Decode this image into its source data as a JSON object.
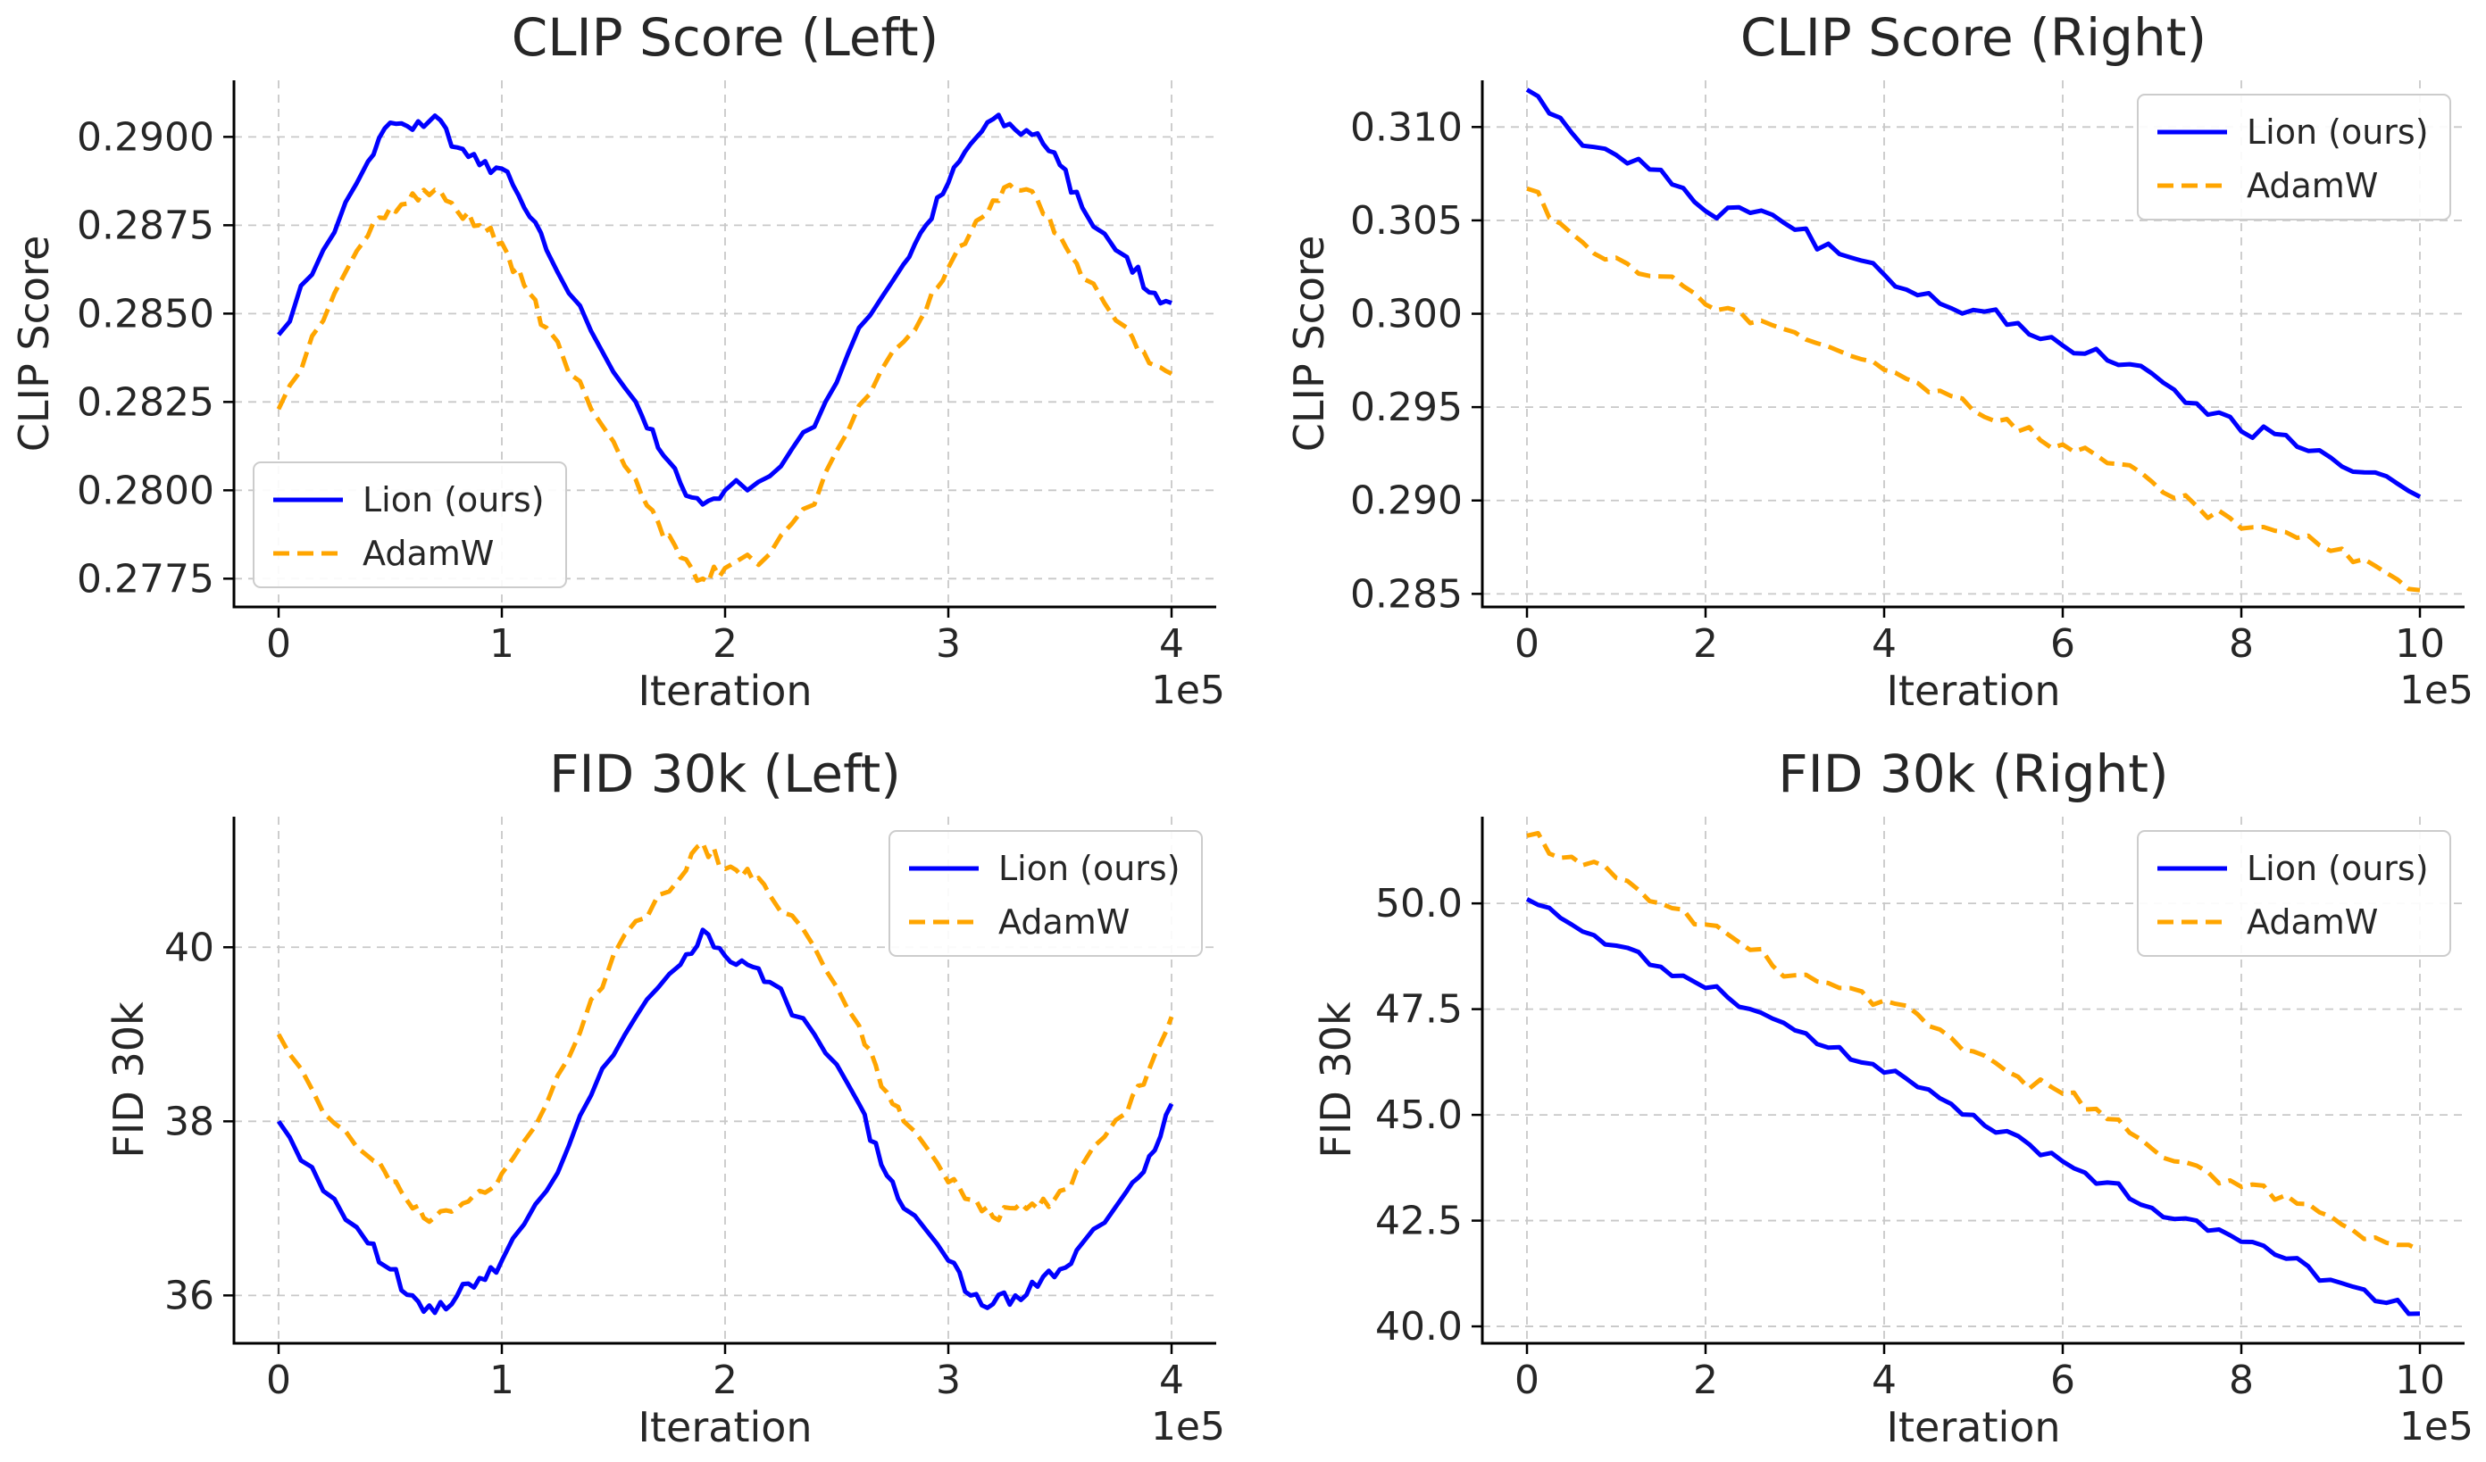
{
  "figure": {
    "layout": "2x2"
  },
  "series_style": {
    "lion": {
      "name": "Lion (ours)",
      "color": "#0000ff",
      "dash": "solid"
    },
    "adamw": {
      "name": "AdamW",
      "color": "#ffa500",
      "dash": "dashed"
    }
  },
  "chart_data": [
    {
      "type": "line",
      "title": "CLIP Score (Left)",
      "xlabel": "Iteration",
      "ylabel": "CLIP Score",
      "x_offset_label": "1e5",
      "xlim": [
        -0.2,
        4.2
      ],
      "ylim": [
        0.2767,
        0.2916
      ],
      "xticks": [
        0,
        1,
        2,
        3,
        4
      ],
      "xtick_labels": [
        "0",
        "1",
        "2",
        "3",
        "4"
      ],
      "yticks": [
        0.2775,
        0.28,
        0.2825,
        0.285,
        0.2875,
        0.29
      ],
      "ytick_labels": [
        "0.2775",
        "0.2800",
        "0.2825",
        "0.2850",
        "0.2875",
        "0.2900"
      ],
      "grid": true,
      "legend": {
        "position": "lower-left",
        "entries": [
          "Lion (ours)",
          "AdamW"
        ]
      },
      "series": [
        {
          "name": "Lion (ours)",
          "key": "lion",
          "x": [
            0,
            0.2,
            0.4,
            0.5,
            0.6,
            0.7,
            0.8,
            0.9,
            1.0,
            1.1,
            1.2,
            1.4,
            1.6,
            1.7,
            1.8,
            1.9,
            2.0,
            2.2,
            2.4,
            2.6,
            2.8,
            2.9,
            3.0,
            3.1,
            3.2,
            3.3,
            3.4,
            3.5,
            3.6,
            3.8,
            3.9,
            4.0
          ],
          "values": [
            0.2844,
            0.2868,
            0.2893,
            0.2904,
            0.2902,
            0.2906,
            0.2897,
            0.2892,
            0.2891,
            0.288,
            0.2868,
            0.2845,
            0.2825,
            0.2812,
            0.2802,
            0.2796,
            0.28,
            0.2804,
            0.2818,
            0.2846,
            0.2864,
            0.2875,
            0.2887,
            0.2898,
            0.2905,
            0.2902,
            0.2901,
            0.2892,
            0.288,
            0.2866,
            0.2856,
            0.2853
          ]
        },
        {
          "name": "AdamW",
          "key": "adamw",
          "x": [
            0,
            0.2,
            0.4,
            0.5,
            0.6,
            0.7,
            0.8,
            0.9,
            1.0,
            1.1,
            1.2,
            1.4,
            1.6,
            1.7,
            1.8,
            1.9,
            2.0,
            2.2,
            2.4,
            2.6,
            2.8,
            2.9,
            3.0,
            3.1,
            3.2,
            3.3,
            3.4,
            3.5,
            3.6,
            3.8,
            3.9,
            4.0
          ],
          "values": [
            0.2823,
            0.2848,
            0.2872,
            0.288,
            0.2884,
            0.2885,
            0.2879,
            0.2875,
            0.287,
            0.2858,
            0.2846,
            0.2823,
            0.2803,
            0.2791,
            0.2781,
            0.2775,
            0.2778,
            0.2782,
            0.2796,
            0.2824,
            0.2842,
            0.2851,
            0.2863,
            0.2873,
            0.2882,
            0.2885,
            0.2882,
            0.2872,
            0.286,
            0.2846,
            0.2836,
            0.2833
          ]
        }
      ]
    },
    {
      "type": "line",
      "title": "CLIP Score (Right)",
      "xlabel": "Iteration",
      "ylabel": "CLIP Score",
      "x_offset_label": "1e5",
      "xlim": [
        -0.5,
        10.5
      ],
      "ylim": [
        0.2843,
        0.3125
      ],
      "xticks": [
        0,
        2,
        4,
        6,
        8,
        10
      ],
      "xtick_labels": [
        "0",
        "2",
        "4",
        "6",
        "8",
        "10"
      ],
      "yticks": [
        0.285,
        0.29,
        0.295,
        0.3,
        0.305,
        0.31
      ],
      "ytick_labels": [
        "0.285",
        "0.290",
        "0.295",
        "0.300",
        "0.305",
        "0.310"
      ],
      "grid": true,
      "legend": {
        "position": "top-right",
        "entries": [
          "Lion (ours)",
          "AdamW"
        ]
      },
      "series": [
        {
          "name": "Lion (ours)",
          "key": "lion",
          "x": [
            0,
            0.5,
            1,
            1.5,
            2,
            2.5,
            3,
            3.5,
            4,
            4.5,
            5,
            5.5,
            6,
            6.5,
            7,
            7.5,
            8,
            8.5,
            9,
            9.5,
            10
          ],
          "values": [
            0.312,
            0.3097,
            0.3085,
            0.3077,
            0.3055,
            0.3054,
            0.3045,
            0.3032,
            0.3021,
            0.3011,
            0.3002,
            0.2995,
            0.2983,
            0.2975,
            0.2968,
            0.2952,
            0.2937,
            0.2935,
            0.2923,
            0.2915,
            0.2902
          ]
        },
        {
          "name": "AdamW",
          "key": "adamw",
          "x": [
            0,
            0.5,
            1,
            1.5,
            2,
            2.5,
            3,
            3.5,
            4,
            4.5,
            5,
            5.5,
            6,
            6.5,
            7,
            7.5,
            8,
            8.5,
            9,
            9.5,
            10
          ],
          "values": [
            0.3067,
            0.3043,
            0.303,
            0.302,
            0.3005,
            0.2995,
            0.299,
            0.298,
            0.297,
            0.2958,
            0.2948,
            0.2937,
            0.293,
            0.292,
            0.291,
            0.2897,
            0.2885,
            0.2883,
            0.2873,
            0.2865,
            0.2852
          ]
        }
      ]
    },
    {
      "type": "line",
      "title": "FID 30k (Left)",
      "xlabel": "Iteration",
      "ylabel": "FID 30k",
      "x_offset_label": "1e5",
      "xlim": [
        -0.2,
        4.2
      ],
      "ylim": [
        35.45,
        41.5
      ],
      "xticks": [
        0,
        1,
        2,
        3,
        4
      ],
      "xtick_labels": [
        "0",
        "1",
        "2",
        "3",
        "4"
      ],
      "yticks": [
        36,
        38,
        40
      ],
      "ytick_labels": [
        "36",
        "38",
        "40"
      ],
      "grid": true,
      "legend": {
        "position": "top-right",
        "entries": [
          "Lion (ours)",
          "AdamW"
        ]
      },
      "series": [
        {
          "name": "Lion (ours)",
          "key": "lion",
          "x": [
            0,
            0.2,
            0.4,
            0.5,
            0.6,
            0.7,
            0.8,
            0.9,
            1.0,
            1.2,
            1.4,
            1.6,
            1.8,
            1.9,
            2.0,
            2.1,
            2.2,
            2.4,
            2.6,
            2.7,
            2.8,
            3.0,
            3.1,
            3.2,
            3.3,
            3.4,
            3.5,
            3.6,
            3.8,
            3.9,
            4.0
          ],
          "values": [
            38.0,
            37.2,
            36.6,
            36.3,
            36.0,
            35.8,
            36.0,
            36.2,
            36.4,
            37.2,
            38.3,
            39.2,
            39.8,
            40.2,
            39.9,
            39.8,
            39.6,
            39.0,
            38.2,
            37.5,
            37.0,
            36.4,
            36.0,
            35.9,
            36.0,
            36.1,
            36.3,
            36.6,
            37.2,
            37.6,
            38.2
          ]
        },
        {
          "name": "AdamW",
          "key": "adamw",
          "x": [
            0,
            0.2,
            0.4,
            0.5,
            0.6,
            0.7,
            0.8,
            0.9,
            1.0,
            1.2,
            1.4,
            1.6,
            1.8,
            1.9,
            2.0,
            2.1,
            2.2,
            2.4,
            2.6,
            2.7,
            2.8,
            3.0,
            3.1,
            3.2,
            3.3,
            3.4,
            3.5,
            3.6,
            3.8,
            3.9,
            4.0
          ],
          "values": [
            39.0,
            38.1,
            37.6,
            37.3,
            37.0,
            36.9,
            37.0,
            37.2,
            37.4,
            38.2,
            39.4,
            40.3,
            40.8,
            41.2,
            40.9,
            40.9,
            40.6,
            40.0,
            39.1,
            38.4,
            38.0,
            37.3,
            37.1,
            36.9,
            37.0,
            37.0,
            37.2,
            37.5,
            38.1,
            38.6,
            39.2
          ]
        }
      ]
    },
    {
      "type": "line",
      "title": "FID 30k (Right)",
      "xlabel": "Iteration",
      "ylabel": "FID 30k",
      "x_offset_label": "1e5",
      "xlim": [
        -0.5,
        10.5
      ],
      "ylim": [
        39.6,
        52.05
      ],
      "xticks": [
        0,
        2,
        4,
        6,
        8,
        10
      ],
      "xtick_labels": [
        "0",
        "2",
        "4",
        "6",
        "8",
        "10"
      ],
      "yticks": [
        40,
        42.5,
        45,
        47.5,
        50
      ],
      "ytick_labels": [
        "40.0",
        "42.5",
        "45.0",
        "47.5",
        "50.0"
      ],
      "grid": true,
      "legend": {
        "position": "top-right",
        "entries": [
          "Lion (ours)",
          "AdamW"
        ]
      },
      "series": [
        {
          "name": "Lion (ours)",
          "key": "lion",
          "x": [
            0,
            0.5,
            1,
            1.5,
            2,
            2.5,
            3,
            3.5,
            4,
            4.5,
            5,
            5.5,
            6,
            6.5,
            7,
            7.5,
            8,
            8.5,
            9,
            9.5,
            10
          ],
          "values": [
            50.1,
            49.5,
            49.0,
            48.5,
            48.0,
            47.5,
            47.0,
            46.6,
            46.0,
            45.6,
            45.0,
            44.5,
            43.9,
            43.4,
            42.8,
            42.5,
            42.0,
            41.6,
            41.1,
            40.6,
            40.3
          ]
        },
        {
          "name": "AdamW",
          "key": "adamw",
          "x": [
            0,
            0.5,
            1,
            1.5,
            2,
            2.5,
            3,
            3.5,
            4,
            4.5,
            5,
            5.5,
            6,
            6.5,
            7,
            7.5,
            8,
            8.5,
            9,
            9.5,
            10
          ],
          "values": [
            51.6,
            51.1,
            50.6,
            50.0,
            49.5,
            48.9,
            48.3,
            48.0,
            47.7,
            47.1,
            46.5,
            45.9,
            45.5,
            44.9,
            44.2,
            43.8,
            43.3,
            43.1,
            42.6,
            42.1,
            41.8
          ]
        }
      ]
    }
  ]
}
